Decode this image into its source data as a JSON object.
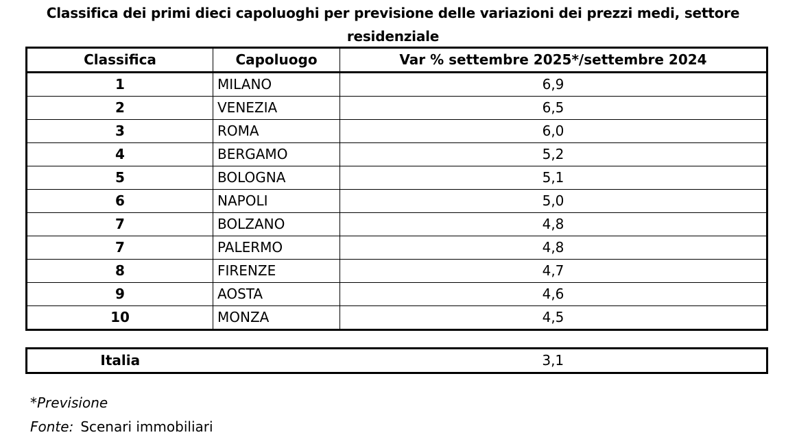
{
  "title": "Classifica dei primi dieci capoluoghi per previsione delle variazioni dei prezzi medi, settore residenziale",
  "headers": {
    "rank": "Classifica",
    "city": "Capoluogo",
    "var": "Var % settembre 2025*/settembre 2024"
  },
  "rows": [
    {
      "rank": "1",
      "city": "MILANO",
      "value": "6,9"
    },
    {
      "rank": "2",
      "city": "VENEZIA",
      "value": "6,5"
    },
    {
      "rank": "3",
      "city": "ROMA",
      "value": "6,0"
    },
    {
      "rank": "4",
      "city": "BERGAMO",
      "value": "5,2"
    },
    {
      "rank": "5",
      "city": "BOLOGNA",
      "value": "5,1"
    },
    {
      "rank": "6",
      "city": "NAPOLI",
      "value": "5,0"
    },
    {
      "rank": "7",
      "city": "BOLZANO",
      "value": "4,8"
    },
    {
      "rank": "7",
      "city": "PALERMO",
      "value": "4,8"
    },
    {
      "rank": "8",
      "city": "FIRENZE",
      "value": "4,7"
    },
    {
      "rank": "9",
      "city": "AOSTA",
      "value": "4,6"
    },
    {
      "rank": "10",
      "city": "MONZA",
      "value": "4,5"
    }
  ],
  "italy": {
    "label": "Italia",
    "value": "3,1"
  },
  "notes": {
    "forecast": "*Previsione",
    "source_label": "Fonte:",
    "source": "Scenari immobiliari"
  }
}
